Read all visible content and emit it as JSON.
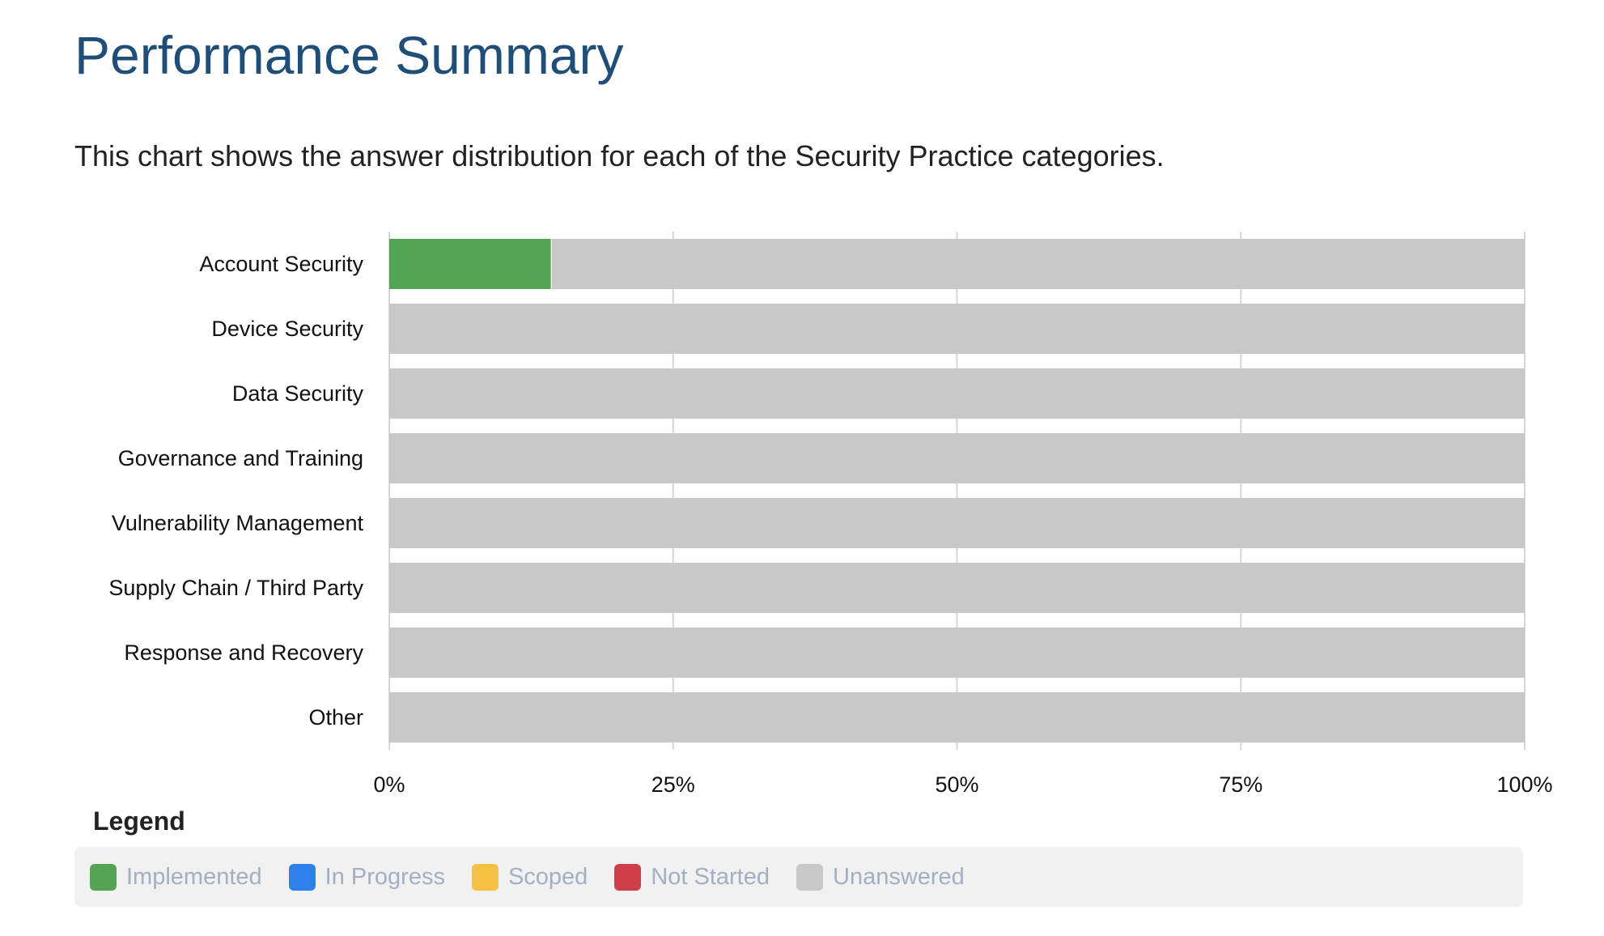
{
  "page": {
    "title": "Performance Summary",
    "description": "This chart shows the answer distribution for each of the Security Practice categories."
  },
  "chart_data": {
    "type": "bar",
    "orientation": "horizontal",
    "stacked": true,
    "categories": [
      "Account Security",
      "Device Security",
      "Data Security",
      "Governance and Training",
      "Vulnerability Management",
      "Supply Chain / Third Party",
      "Response and Recovery",
      "Other"
    ],
    "series": [
      {
        "name": "Implemented",
        "color": "#53a551",
        "values": [
          14.3,
          0,
          0,
          0,
          0,
          0,
          0,
          0
        ]
      },
      {
        "name": "In Progress",
        "color": "#2f80ed",
        "values": [
          0,
          0,
          0,
          0,
          0,
          0,
          0,
          0
        ]
      },
      {
        "name": "Scoped",
        "color": "#f5c143",
        "values": [
          0,
          0,
          0,
          0,
          0,
          0,
          0,
          0
        ]
      },
      {
        "name": "Not Started",
        "color": "#cf3f49",
        "values": [
          0,
          0,
          0,
          0,
          0,
          0,
          0,
          0
        ]
      },
      {
        "name": "Unanswered",
        "color": "#c8c8c8",
        "values": [
          85.7,
          100,
          100,
          100,
          100,
          100,
          100,
          100
        ]
      }
    ],
    "x_ticks": [
      "0%",
      "25%",
      "50%",
      "75%",
      "100%"
    ],
    "xlim": [
      0,
      100
    ],
    "grid": true,
    "legend_position": "bottom"
  },
  "legend": {
    "title": "Legend",
    "items": [
      {
        "label": "Implemented",
        "color": "#53a551"
      },
      {
        "label": "In Progress",
        "color": "#2f80ed"
      },
      {
        "label": "Scoped",
        "color": "#f5c143"
      },
      {
        "label": "Not Started",
        "color": "#cf3f49"
      },
      {
        "label": "Unanswered",
        "color": "#c8c8c8"
      }
    ]
  }
}
